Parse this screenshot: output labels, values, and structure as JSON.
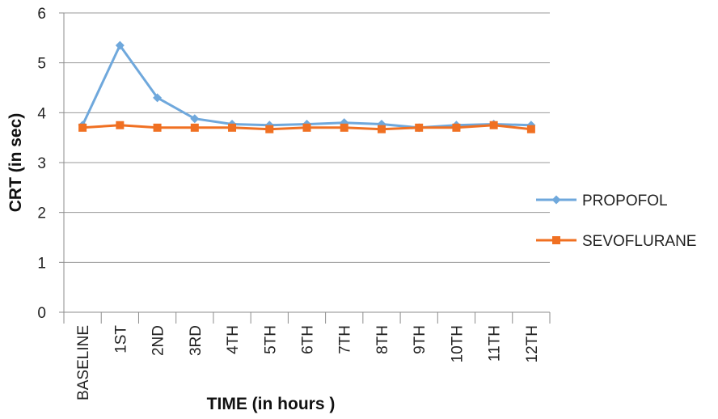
{
  "chart_data": {
    "type": "line",
    "categories": [
      "BASELINE",
      "1ST",
      "2ND",
      "3RD",
      "4TH",
      "5TH",
      "6TH",
      "7TH",
      "8TH",
      "9TH",
      "10TH",
      "11TH",
      "12TH"
    ],
    "series": [
      {
        "name": "PROPOFOL",
        "values": [
          3.75,
          5.35,
          4.3,
          3.88,
          3.77,
          3.75,
          3.77,
          3.8,
          3.77,
          3.7,
          3.75,
          3.77,
          3.75
        ],
        "color": "#6fa8dc",
        "marker": "diamond"
      },
      {
        "name": "SEVOFLURANE",
        "values": [
          3.7,
          3.75,
          3.7,
          3.7,
          3.7,
          3.67,
          3.7,
          3.7,
          3.67,
          3.7,
          3.7,
          3.75,
          3.67
        ],
        "color": "#f07022",
        "marker": "square"
      }
    ],
    "xlabel": "TIME (in hours )",
    "ylabel": "CRT (in sec)",
    "ylim": [
      0,
      6
    ],
    "yticks": [
      0,
      1,
      2,
      3,
      4,
      5,
      6
    ],
    "grid": true,
    "legend": "right"
  }
}
